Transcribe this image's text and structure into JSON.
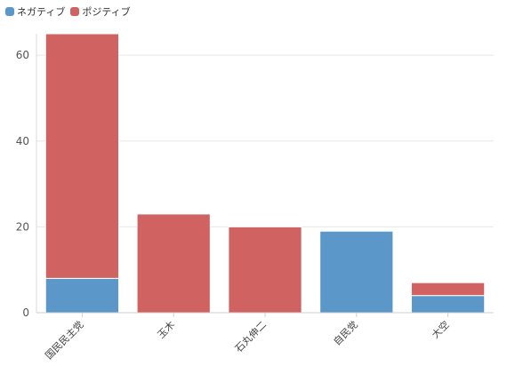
{
  "chart_data": {
    "type": "bar",
    "stacked": true,
    "categories": [
      "国民民主党",
      "玉木",
      "石丸伸二",
      "自民党",
      "大空"
    ],
    "series": [
      {
        "name": "ネガティブ",
        "color": "#5b97c8",
        "values": [
          8,
          0,
          0,
          19,
          4
        ]
      },
      {
        "name": "ポジティブ",
        "color": "#d06262",
        "values": [
          57,
          23,
          20,
          0,
          3
        ]
      }
    ],
    "yticks": [
      0,
      20,
      40,
      60
    ],
    "ylim": [
      0,
      65
    ],
    "grid": true,
    "legend_position": "top-left"
  }
}
